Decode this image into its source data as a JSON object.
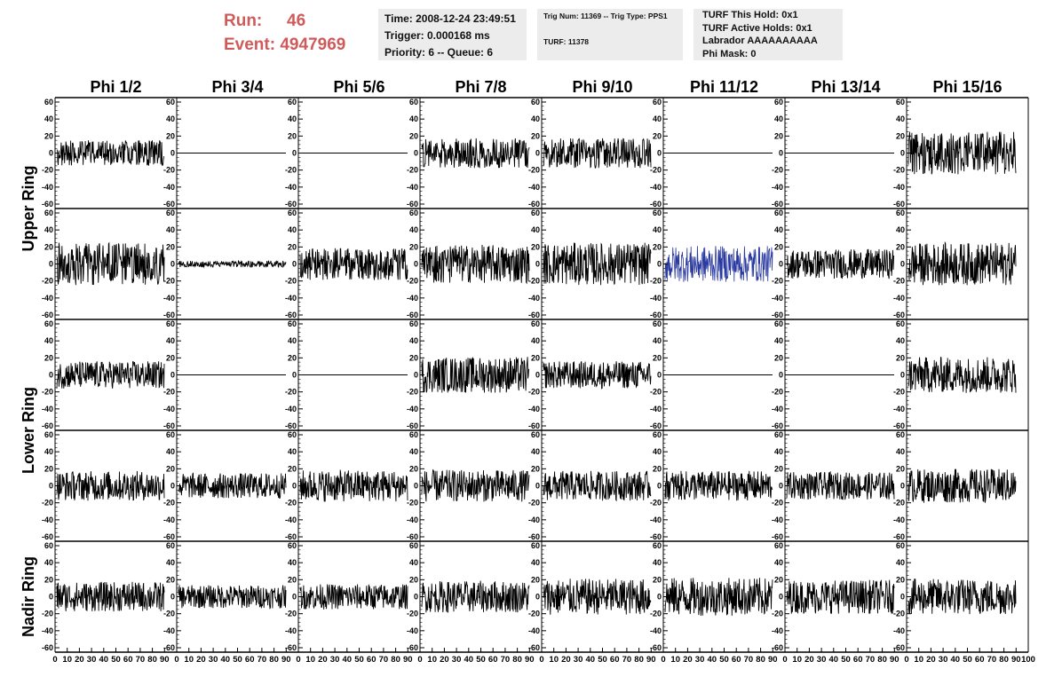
{
  "run": {
    "label": "Run:",
    "value": "46"
  },
  "event": {
    "label": "Event:",
    "value": "4947969"
  },
  "header_panel_1": {
    "time": "Time: 2008-12-24 23:49:51",
    "trigger": "Trigger: 0.000168 ms",
    "priority": "Priority: 6 -- Queue: 6"
  },
  "header_panel_2": {
    "trig": "Trig Num: 11369 -- Trig Type: PPS1",
    "turf": "TURF: 11378"
  },
  "header_panel_3": {
    "hold": "TURF This Hold: 0x1",
    "active": "TURF Active Holds: 0x1",
    "labrador": "Labrador AAAAAAAAAA",
    "phimask": "Phi Mask: 0"
  },
  "colors": {
    "header_red": "#d05a5a",
    "trace": "#000000",
    "highlight_trace": "#2a3aa0",
    "panel_bg": "#ececec"
  },
  "chart_data": {
    "type": "line",
    "columns": [
      "Phi 1/2",
      "Phi 3/4",
      "Phi 5/6",
      "Phi 7/8",
      "Phi 9/10",
      "Phi 11/12",
      "Phi 13/14",
      "Phi 15/16"
    ],
    "ring_labels": [
      {
        "text": "Upper Ring",
        "rows": [
          0,
          1
        ]
      },
      {
        "text": "Lower Ring",
        "rows": [
          2,
          3
        ]
      },
      {
        "text": "Nadir Ring",
        "rows": [
          4
        ]
      }
    ],
    "ylim": [
      -60,
      60
    ],
    "yticks": [
      -60,
      -40,
      -20,
      0,
      20,
      40,
      60
    ],
    "xlim": [
      0,
      100
    ],
    "xticks": [
      0,
      10,
      20,
      30,
      40,
      50,
      60,
      70,
      80,
      90,
      100
    ],
    "trace_xrange": [
      0,
      100
    ],
    "grid": false,
    "amplitude_rows": [
      [
        12,
        0,
        0,
        14,
        14,
        0,
        0,
        20
      ],
      [
        20,
        3,
        15,
        18,
        20,
        17,
        14,
        20
      ],
      [
        13,
        0,
        0,
        17,
        13,
        0,
        0,
        17
      ],
      [
        14,
        12,
        15,
        15,
        14,
        14,
        13,
        16
      ],
      [
        14,
        11,
        12,
        15,
        17,
        18,
        16,
        17
      ]
    ],
    "highlight": {
      "row": 1,
      "col": 5
    }
  }
}
